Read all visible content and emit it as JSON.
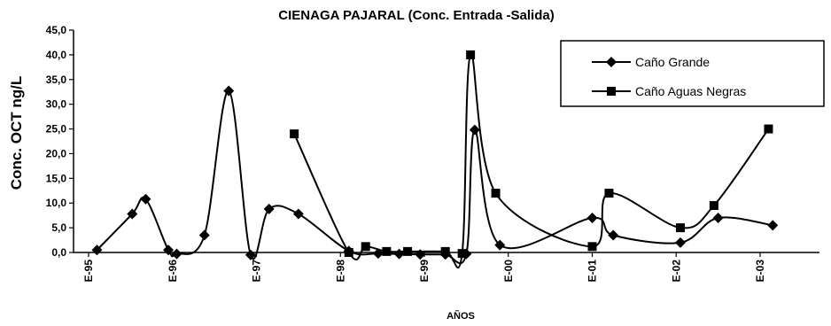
{
  "chart_data": {
    "type": "line",
    "title": "CIENAGA PAJARAL (Conc. Entrada -Salida)",
    "ylabel": "Conc. OCT ng/L",
    "xlabel": "AÑOS",
    "ylim": [
      0,
      45
    ],
    "y_ticks": [
      "0,0",
      "5,0",
      "10,0",
      "15,0",
      "20,0",
      "25,0",
      "30,0",
      "35,0",
      "40,0",
      "45,0"
    ],
    "y_tick_values": [
      0,
      5,
      10,
      15,
      20,
      25,
      30,
      35,
      40,
      45
    ],
    "xlim": [
      1995,
      2003.85
    ],
    "x_ticks": [
      "E-95",
      "E-96",
      "E-97",
      "E-98",
      "E-99",
      "E-00",
      "E-01",
      "E-02",
      "E-03"
    ],
    "x_tick_values": [
      1995,
      1996,
      1997,
      1998,
      1999,
      2000,
      2001,
      2002,
      2003
    ],
    "legend_position": "top-right",
    "series": [
      {
        "name": "Caño Grande",
        "marker": "diamond",
        "points": [
          [
            1995.1,
            0.5
          ],
          [
            1995.52,
            7.8
          ],
          [
            1995.68,
            10.8
          ],
          [
            1995.95,
            0.5
          ],
          [
            1996.05,
            -0.3
          ],
          [
            1996.38,
            3.5
          ],
          [
            1996.67,
            32.7
          ],
          [
            1996.93,
            -0.5
          ],
          [
            1997.15,
            8.8
          ],
          [
            1997.5,
            7.8
          ],
          [
            1998.1,
            0.3
          ],
          [
            1998.45,
            -0.2
          ],
          [
            1998.7,
            -0.3
          ],
          [
            1998.95,
            -0.4
          ],
          [
            1999.25,
            -0.4
          ],
          [
            1999.5,
            -0.3
          ],
          [
            1999.6,
            24.8
          ],
          [
            1999.9,
            1.5
          ],
          [
            2001.0,
            7.0
          ],
          [
            2001.25,
            3.5
          ],
          [
            2002.05,
            2.0
          ],
          [
            2002.5,
            7.0
          ],
          [
            2003.15,
            5.5
          ]
        ]
      },
      {
        "name": "Caño Aguas Negras",
        "marker": "square",
        "points": [
          [
            1997.45,
            24.0
          ],
          [
            1998.1,
            0.0
          ],
          [
            1998.3,
            1.2
          ],
          [
            1998.55,
            0.2
          ],
          [
            1998.8,
            0.2
          ],
          [
            1999.25,
            0.2
          ],
          [
            1999.45,
            -0.2
          ],
          [
            1999.55,
            40.0
          ],
          [
            1999.85,
            12.0
          ],
          [
            2001.0,
            1.2
          ],
          [
            2001.2,
            12.0
          ],
          [
            2002.05,
            5.0
          ],
          [
            2002.45,
            9.5
          ],
          [
            2003.1,
            25.0
          ]
        ]
      }
    ]
  }
}
